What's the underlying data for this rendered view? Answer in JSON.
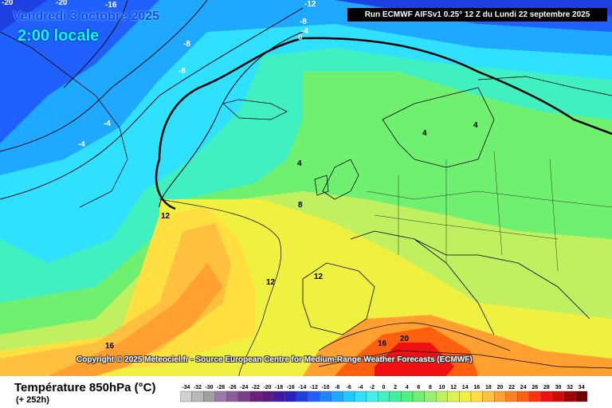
{
  "map": {
    "date_title": "Vendredi 3 octobre 2025",
    "time_title": "2:00 locale",
    "run_info": "Run ECMWF AIFSv1 0.25° 12 Z du Lundi 22 septembre 2025",
    "copyright": "Copyright © 2025 Meteociel.fr - Source European Centre for Medium-Range Weather Forecasts (ECMWF)",
    "contour_labels": [
      "-20",
      "-20",
      "-16",
      "-12",
      "-8",
      "-4",
      "0",
      "-8",
      "-8",
      "-4",
      "-4",
      "4",
      "4",
      "4",
      "8",
      "12",
      "12",
      "12",
      "16",
      "16",
      "20"
    ]
  },
  "footer": {
    "title": "Température 850hPa (°C)",
    "subtitle": "(+ 252h)"
  },
  "legend": {
    "labels": [
      "-34",
      "-32",
      "-30",
      "-28",
      "-26",
      "-24",
      "-22",
      "-20",
      "-18",
      "-16",
      "-14",
      "-12",
      "-10",
      "-8",
      "-6",
      "-4",
      "-2",
      "0",
      "2",
      "4",
      "6",
      "8",
      "10",
      "12",
      "14",
      "16",
      "18",
      "20",
      "22",
      "24",
      "26",
      "28",
      "30",
      "32",
      "34"
    ],
    "colors": [
      "#d0d0d0",
      "#b8b8b8",
      "#a0a0a0",
      "#9a7aa8",
      "#8a5c9a",
      "#7a3f8a",
      "#6a1f78",
      "#5a1880",
      "#3f1aa0",
      "#2a20c0",
      "#1f40e0",
      "#1f60ff",
      "#1f85ff",
      "#1fa8ff",
      "#1fc8ff",
      "#30e0ff",
      "#40f0e8",
      "#40f0c0",
      "#40f09a",
      "#50f080",
      "#70f070",
      "#98f070",
      "#c0f060",
      "#e0f050",
      "#f0f040",
      "#ffe040",
      "#ffc040",
      "#ffa030",
      "#ff8020",
      "#ff6010",
      "#ff3010",
      "#f01010",
      "#d00808",
      "#a00000",
      "#700000"
    ]
  }
}
